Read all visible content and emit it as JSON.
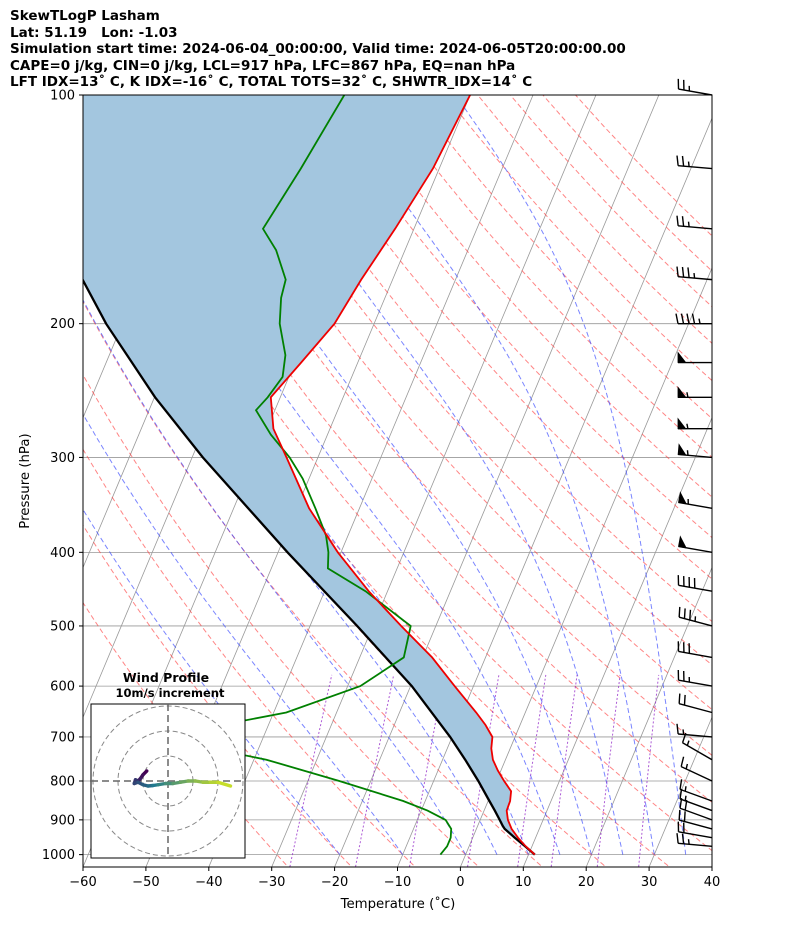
{
  "header": {
    "line1": "SkewTLogP Lasham",
    "line2": "Lat: 51.19   Lon: -1.03",
    "line3": "Simulation start time: 2024-06-04_00:00:00, Valid time: 2024-06-05T20:00:00.00",
    "line4": "CAPE=0 j/kg, CIN=0 j/kg, LCL=917 hPa, LFC=867 hPa, EQ=nan hPa",
    "line5": "LFT IDX=13˚ C, K IDX=-16˚ C, TOTAL TOTS=32˚ C, SHWTR_IDX=14˚ C"
  },
  "colors": {
    "temperature": "#ee0000",
    "dewpoint": "#008000",
    "parcel": "#000000",
    "cape_fill": "#a3c6df",
    "dry_adiabat": "#ff4444",
    "moist_adiabat": "#3344ff",
    "mixing_ratio": "#9933cc",
    "isotherm": "#999999",
    "hodograph_rings": "#888888"
  },
  "chart_data": [
    {
      "type": "skewt",
      "xlabel": "Temperature (˚C)",
      "ylabel": "Pressure (hPa)",
      "xlim": [
        -60,
        40
      ],
      "ylim": [
        1050,
        100
      ],
      "y_scale": "log",
      "grid": true,
      "xticks": [
        "−60",
        "−50",
        "−40",
        "−30",
        "−20",
        "−10",
        "0",
        "10",
        "20",
        "30",
        "40"
      ],
      "xtick_values": [
        -60,
        -50,
        -40,
        -30,
        -20,
        -10,
        0,
        10,
        20,
        30,
        40
      ],
      "yticks": [
        "100",
        "200",
        "300",
        "400",
        "500",
        "600",
        "700",
        "800",
        "900",
        "1000"
      ],
      "ytick_values": [
        100,
        200,
        300,
        400,
        500,
        600,
        700,
        800,
        900,
        1000
      ],
      "temperature": {
        "p": [
          1000,
          975,
          950,
          925,
          900,
          875,
          850,
          825,
          800,
          775,
          750,
          725,
          700,
          675,
          650,
          600,
          550,
          500,
          450,
          400,
          350,
          300,
          275,
          250,
          225,
          200,
          175,
          150,
          125,
          100
        ],
        "t": [
          11.0,
          9.0,
          7.2,
          5.6,
          4.4,
          3.6,
          3.5,
          3.0,
          1.2,
          -0.5,
          -2.0,
          -3.0,
          -3.6,
          -5.5,
          -7.8,
          -13.0,
          -18.5,
          -25.5,
          -33.0,
          -40.5,
          -48.0,
          -55.0,
          -59.0,
          -61.5,
          -59.0,
          -56.3,
          -55.0,
          -53.0,
          -51.0,
          -50.0
        ]
      },
      "dewpoint": {
        "p": [
          1000,
          975,
          950,
          925,
          900,
          875,
          850,
          800,
          750,
          725,
          700,
          675,
          650,
          600,
          550,
          500,
          450,
          420,
          400,
          380,
          350,
          320,
          300,
          280,
          260,
          250,
          235,
          220,
          200,
          185,
          175,
          160,
          150,
          125,
          100
        ],
        "t": [
          -4.0,
          -3.5,
          -3.5,
          -4.0,
          -5.5,
          -9.0,
          -13.5,
          -25.0,
          -38.0,
          -47.5,
          -57.0,
          -47.5,
          -38.0,
          -28.0,
          -23.0,
          -24.0,
          -33.5,
          -41.0,
          -42.0,
          -43.5,
          -47.0,
          -51.0,
          -54.5,
          -59.0,
          -63.0,
          -62.0,
          -61.0,
          -62.0,
          -65.0,
          -66.5,
          -67.0,
          -70.5,
          -74.0,
          -72.0,
          -70.0
        ]
      },
      "parcel": {
        "p": [
          1000,
          975,
          950,
          925,
          917,
          900,
          875,
          850,
          800,
          750,
          700,
          600,
          500,
          400,
          300,
          250,
          200,
          150,
          100
        ],
        "t": [
          11.0,
          8.9,
          6.7,
          4.5,
          4.0,
          3.1,
          1.7,
          0.2,
          -2.9,
          -6.4,
          -10.3,
          -19.8,
          -32.5,
          -48.5,
          -68.3,
          -79.9,
          -92.6,
          -107.0,
          -124.0
        ]
      },
      "wind_barbs": {
        "p": [
          100,
          125,
          150,
          175,
          200,
          225,
          250,
          275,
          300,
          350,
          400,
          450,
          500,
          550,
          600,
          650,
          700,
          750,
          800,
          850,
          875,
          900,
          925,
          950,
          975
        ],
        "direction_deg": [
          280,
          275,
          275,
          275,
          270,
          270,
          270,
          270,
          275,
          280,
          280,
          280,
          285,
          280,
          280,
          285,
          275,
          300,
          295,
          290,
          290,
          290,
          285,
          280,
          275
        ],
        "speed_kt": [
          25,
          25,
          25,
          35,
          45,
          50,
          55,
          55,
          55,
          55,
          50,
          40,
          35,
          30,
          25,
          20,
          15,
          15,
          15,
          15,
          15,
          20,
          20,
          20,
          25
        ]
      }
    },
    {
      "type": "hodograph",
      "title": "Wind Profile",
      "subtitle": "10m/s increment",
      "ring_increment_ms": 10,
      "rings_ms": [
        10,
        20,
        30
      ],
      "u_ms": [
        -8.5,
        -10,
        -11,
        -12,
        -13,
        -13.5,
        -12,
        -10,
        -8,
        -6,
        -4,
        -1,
        2,
        5,
        8,
        11,
        14,
        17,
        20,
        25
      ],
      "v_ms": [
        4.0,
        2.5,
        1.0,
        0.0,
        0.5,
        -1.0,
        -0.5,
        -1.5,
        -2.0,
        -1.8,
        -1.5,
        -1.0,
        -1.0,
        -0.5,
        0.0,
        0.0,
        -0.5,
        -0.5,
        -0.5,
        -2.0
      ]
    }
  ]
}
